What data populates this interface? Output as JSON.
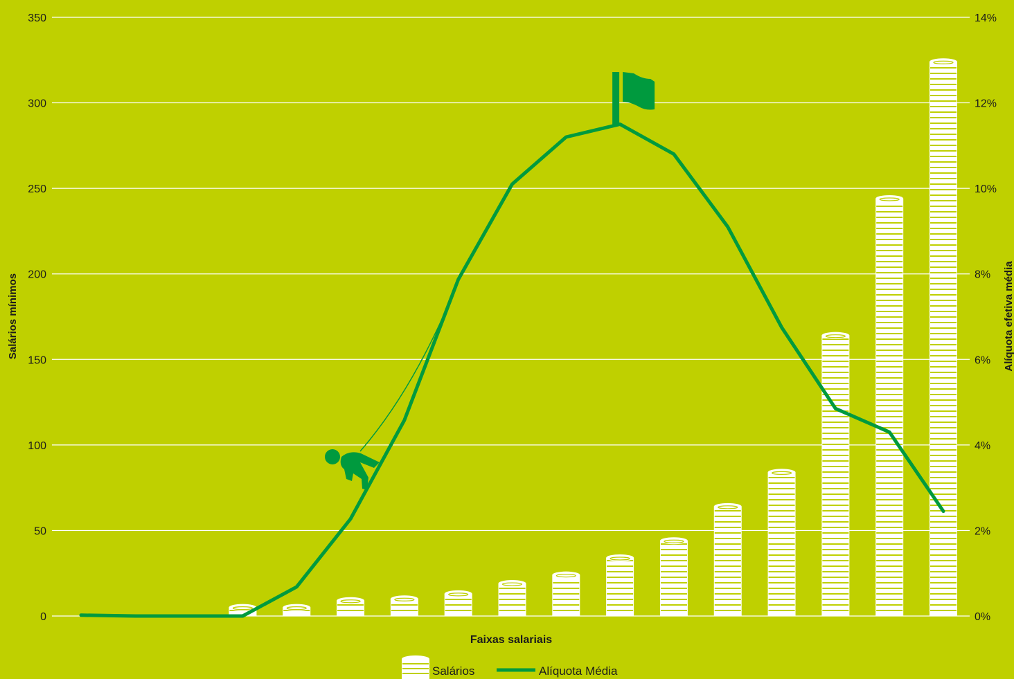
{
  "colors": {
    "background": "#BFD000",
    "line": "#009A3E",
    "coin": "#FFFFFF",
    "grid": "#FFFFFF",
    "text": "#1B1B1B",
    "climber": "#009A3E"
  },
  "chart_data": {
    "type": "bar",
    "xlabel": "Faixas salariais",
    "ylabel_left": "Salários mínimos",
    "ylabel_right": "Alíquota efetiva média",
    "ylim_left": [
      0,
      350
    ],
    "ylim_right": [
      0,
      14
    ],
    "y_ticks_left": [
      "0",
      "50",
      "100",
      "150",
      "200",
      "250",
      "300",
      "350"
    ],
    "y_ticks_right": [
      "0%",
      "2%",
      "4%",
      "6%",
      "8%",
      "10%",
      "12%",
      "14%"
    ],
    "grid": true,
    "legend_position": "bottom",
    "series": [
      {
        "name": "Salários",
        "kind": "bar",
        "axis": "left",
        "values": [
          0,
          0,
          0,
          5,
          5,
          9,
          10,
          13,
          19,
          24,
          34,
          44,
          64,
          84,
          164,
          244,
          324
        ]
      },
      {
        "name": "Alíquota Média",
        "kind": "line",
        "axis": "right",
        "values": [
          0.02,
          0.0,
          0.0,
          0.0,
          0.68,
          2.27,
          4.58,
          7.87,
          10.1,
          11.2,
          11.5,
          10.8,
          9.1,
          6.75,
          4.85,
          4.3,
          2.45
        ]
      }
    ]
  },
  "legend": {
    "bars_label": "Salários",
    "line_label": "Alíquota Média"
  }
}
